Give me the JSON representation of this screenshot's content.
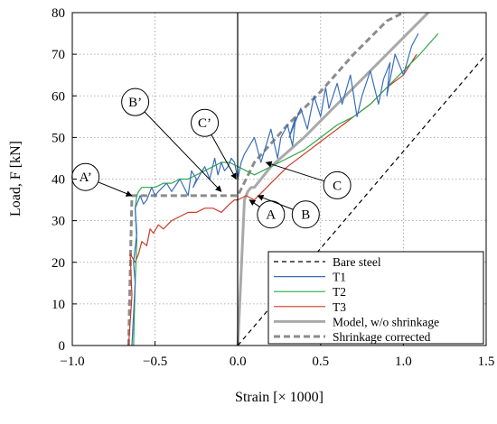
{
  "chart_data": {
    "type": "line",
    "xlabel": "Strain [× 1000]",
    "ylabel": "Load, F [kN]",
    "xlim": [
      -1.0,
      1.5
    ],
    "ylim": [
      0,
      80
    ],
    "x_ticks": [
      -1.0,
      -0.5,
      0.0,
      0.5,
      1.0,
      1.5
    ],
    "x_tick_labels": [
      "−1.0",
      "−0.5",
      "0.0",
      "0.5",
      "1.0",
      "1.5"
    ],
    "y_ticks": [
      0,
      10,
      20,
      30,
      40,
      50,
      60,
      70,
      80
    ],
    "y_tick_labels": [
      "0",
      "10",
      "20",
      "30",
      "40",
      "50",
      "60",
      "70",
      "80"
    ],
    "grid": "dotted",
    "legend_position": "bottom-right",
    "series": [
      {
        "name": "Bare steel",
        "color": "#000000",
        "style": "dashed",
        "x": [
          0.0,
          1.5
        ],
        "y": [
          0,
          70
        ]
      },
      {
        "name": "T1",
        "color": "#3a6fb8",
        "style": "solid",
        "x": [
          -0.64,
          -0.62,
          -0.63,
          -0.61,
          -0.62,
          -0.6,
          -0.59,
          -0.57,
          -0.55,
          -0.52,
          -0.5,
          -0.48,
          -0.43,
          -0.4,
          -0.35,
          -0.3,
          -0.28,
          -0.25,
          -0.27,
          -0.23,
          -0.2,
          -0.17,
          -0.14,
          -0.12,
          -0.1,
          -0.08,
          -0.06,
          -0.04,
          -0.02,
          0.0,
          0.02,
          0.04,
          0.07,
          0.1,
          0.14,
          0.17,
          0.2,
          0.24,
          0.26,
          0.3,
          0.33,
          0.35,
          0.31,
          0.38,
          0.42,
          0.46,
          0.5,
          0.53,
          0.55,
          0.6,
          0.63,
          0.68,
          0.72,
          0.75,
          0.8,
          0.85,
          0.88,
          0.92,
          0.9,
          0.95,
          1.0,
          1.05,
          1.09
        ],
        "y": [
          0,
          15,
          20,
          27,
          33,
          35,
          36,
          34,
          35,
          38,
          36,
          37,
          39,
          37,
          40,
          36,
          42,
          40,
          38,
          41,
          43,
          40,
          45,
          41,
          44,
          42,
          43,
          45,
          44,
          40,
          44,
          46,
          48,
          50,
          44,
          48,
          52,
          45,
          50,
          53,
          48,
          55,
          50,
          57,
          52,
          60,
          55,
          62,
          57,
          63,
          58,
          65,
          55,
          60,
          66,
          58,
          64,
          68,
          60,
          70,
          65,
          72,
          75
        ]
      },
      {
        "name": "T2",
        "color": "#2ea84a",
        "style": "solid",
        "x": [
          -0.63,
          -0.62,
          -0.61,
          -0.62,
          -0.61,
          -0.6,
          -0.58,
          -0.55,
          -0.5,
          -0.45,
          -0.4,
          -0.35,
          -0.3,
          -0.25,
          -0.2,
          -0.15,
          -0.1,
          -0.05,
          0.0,
          0.05,
          0.1,
          0.15,
          0.2,
          0.3,
          0.4,
          0.5,
          0.6,
          0.7,
          0.8,
          0.9,
          1.0,
          1.1,
          1.21
        ],
        "y": [
          0,
          15,
          25,
          33,
          36,
          37,
          38,
          38,
          38,
          39,
          39,
          40,
          40,
          41,
          42,
          43,
          44,
          44,
          43,
          42,
          41,
          42,
          43,
          45,
          47,
          50,
          53,
          55,
          58,
          62,
          66,
          70,
          75
        ]
      },
      {
        "name": "T3",
        "color": "#cc3a26",
        "style": "solid",
        "x": [
          -0.66,
          -0.64,
          -0.65,
          -0.62,
          -0.6,
          -0.58,
          -0.55,
          -0.53,
          -0.51,
          -0.48,
          -0.45,
          -0.4,
          -0.35,
          -0.3,
          -0.25,
          -0.2,
          -0.15,
          -0.1,
          -0.05,
          -0.02,
          0.0,
          0.05,
          0.1,
          0.15,
          0.2,
          0.3,
          0.4,
          0.5,
          0.6,
          0.7,
          0.8,
          0.9,
          1.0,
          1.08
        ],
        "y": [
          0,
          12,
          22,
          20,
          22,
          25,
          24,
          28,
          27,
          29,
          28,
          30,
          31,
          32,
          32,
          33,
          33,
          32,
          34,
          35,
          35,
          36,
          35,
          37,
          39,
          43,
          46,
          49,
          52,
          55,
          58,
          62,
          65,
          70
        ]
      },
      {
        "name": "Model, w/o shrinkage",
        "color": "#a9a9a9",
        "style": "solid-thick",
        "x": [
          0.0,
          0.04,
          0.06,
          0.08,
          0.1,
          0.2,
          0.4,
          0.6,
          0.8,
          1.0,
          1.2
        ],
        "y": [
          0,
          35,
          37,
          38,
          38,
          43,
          50,
          58,
          66,
          74,
          82
        ]
      },
      {
        "name": "Shrinkage corrected",
        "color": "#8c8c8c",
        "style": "dashed-thick",
        "x": [
          -0.66,
          -0.64,
          -0.63,
          -0.55,
          -0.4,
          -0.2,
          0.0,
          0.1,
          0.3,
          0.5,
          0.7,
          0.9,
          1.1
        ],
        "y": [
          0,
          36,
          36,
          36,
          36,
          36,
          36,
          44,
          53,
          61,
          70,
          78,
          82
        ]
      }
    ],
    "annotations": [
      {
        "label": "A’",
        "x": -0.92,
        "y": 40.5,
        "target_x": -0.64,
        "target_y": 36
      },
      {
        "label": "B’",
        "x": -0.62,
        "y": 58.5,
        "target_x": -0.1,
        "target_y": 37
      },
      {
        "label": "C’",
        "x": -0.2,
        "y": 53.5,
        "target_x": -0.01,
        "target_y": 40
      },
      {
        "label": "A",
        "x": 0.2,
        "y": 31.5,
        "target_x": 0.07,
        "target_y": 35
      },
      {
        "label": "B",
        "x": 0.41,
        "y": 31.5,
        "target_x": 0.12,
        "target_y": 36
      },
      {
        "label": "C",
        "x": 0.6,
        "y": 38.5,
        "target_x": 0.17,
        "target_y": 44
      }
    ]
  }
}
